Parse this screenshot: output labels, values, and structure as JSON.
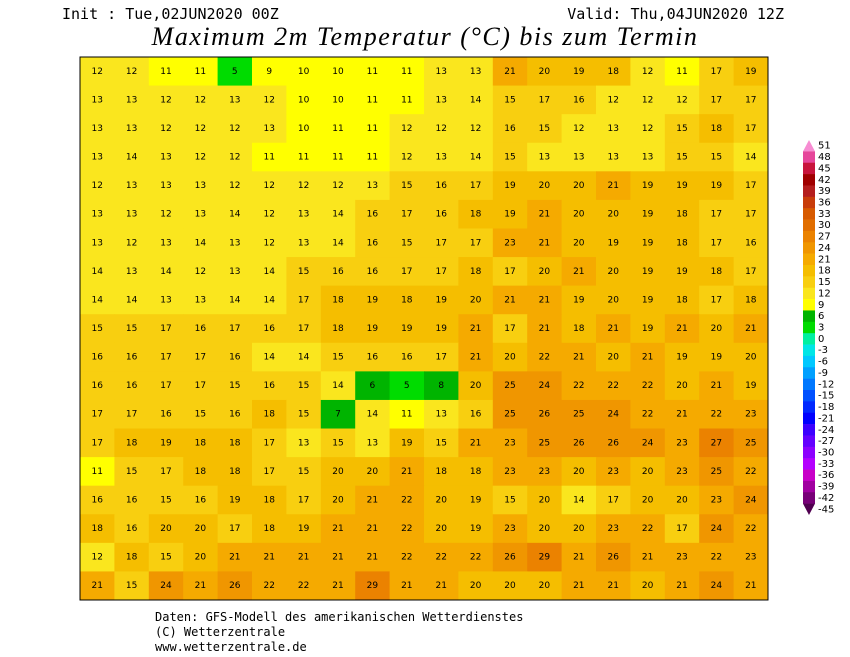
{
  "header": {
    "init": "Init : Tue,02JUN2020 00Z",
    "valid": "Valid: Thu,04JUN2020 12Z",
    "title": "Maximum 2m Temperatur (°C) bis zum Termin"
  },
  "map": {
    "rows": [
      [
        12,
        12,
        11,
        11,
        5,
        9,
        10,
        10,
        11,
        11,
        13,
        13,
        21,
        20,
        19,
        18,
        12,
        11,
        17,
        19
      ],
      [
        13,
        13,
        12,
        12,
        13,
        12,
        10,
        10,
        11,
        11,
        13,
        14,
        15,
        17,
        16,
        12,
        12,
        12,
        17,
        17
      ],
      [
        13,
        13,
        12,
        12,
        12,
        13,
        10,
        11,
        11,
        12,
        12,
        12,
        16,
        15,
        12,
        13,
        12,
        15,
        18,
        17
      ],
      [
        13,
        14,
        13,
        12,
        12,
        11,
        11,
        11,
        11,
        12,
        13,
        14,
        15,
        13,
        13,
        13,
        13,
        15,
        15,
        14
      ],
      [
        12,
        13,
        13,
        13,
        12,
        12,
        12,
        12,
        13,
        15,
        16,
        17,
        19,
        20,
        20,
        21,
        19,
        19,
        19,
        17
      ],
      [
        13,
        13,
        12,
        13,
        14,
        12,
        13,
        14,
        16,
        17,
        16,
        18,
        19,
        21,
        20,
        20,
        19,
        18,
        17,
        17
      ],
      [
        13,
        12,
        13,
        14,
        13,
        12,
        13,
        14,
        16,
        15,
        17,
        17,
        23,
        21,
        20,
        19,
        19,
        18,
        17,
        16
      ],
      [
        14,
        13,
        14,
        12,
        13,
        14,
        15,
        16,
        16,
        17,
        17,
        18,
        17,
        20,
        21,
        20,
        19,
        19,
        18,
        17
      ],
      [
        14,
        14,
        13,
        13,
        14,
        14,
        17,
        18,
        19,
        18,
        19,
        20,
        21,
        21,
        19,
        20,
        19,
        18,
        17,
        18
      ],
      [
        15,
        15,
        17,
        16,
        17,
        16,
        17,
        18,
        19,
        19,
        19,
        21,
        17,
        21,
        18,
        21,
        19,
        21,
        20,
        21
      ],
      [
        16,
        16,
        17,
        17,
        16,
        14,
        14,
        15,
        16,
        16,
        17,
        21,
        20,
        22,
        21,
        20,
        21,
        19,
        19,
        20
      ],
      [
        16,
        16,
        17,
        17,
        15,
        16,
        15,
        14,
        6,
        5,
        8,
        20,
        25,
        24,
        22,
        22,
        22,
        20,
        21,
        19
      ],
      [
        17,
        17,
        16,
        15,
        16,
        18,
        15,
        7,
        14,
        11,
        13,
        16,
        25,
        26,
        25,
        24,
        22,
        21,
        22,
        23
      ],
      [
        17,
        18,
        19,
        18,
        18,
        17,
        13,
        15,
        13,
        19,
        15,
        21,
        23,
        25,
        26,
        26,
        24,
        23,
        27,
        25
      ],
      [
        11,
        15,
        17,
        18,
        18,
        17,
        15,
        20,
        20,
        21,
        18,
        18,
        23,
        23,
        20,
        23,
        20,
        23,
        25,
        22
      ],
      [
        16,
        16,
        15,
        16,
        19,
        18,
        17,
        20,
        21,
        22,
        20,
        19,
        15,
        20,
        14,
        17,
        20,
        20,
        23,
        24
      ],
      [
        18,
        16,
        20,
        20,
        17,
        18,
        19,
        21,
        21,
        22,
        20,
        19,
        23,
        20,
        20,
        23,
        22,
        17,
        24,
        22
      ],
      [
        12,
        18,
        15,
        20,
        21,
        21,
        21,
        21,
        21,
        22,
        22,
        22,
        26,
        29,
        21,
        26,
        21,
        23,
        22,
        23
      ],
      [
        21,
        15,
        24,
        21,
        26,
        22,
        22,
        21,
        29,
        21,
        21,
        20,
        20,
        20,
        21,
        21,
        20,
        21,
        24,
        21
      ]
    ]
  },
  "colorbar": {
    "levels": [
      51,
      48,
      45,
      42,
      39,
      36,
      33,
      30,
      27,
      24,
      21,
      18,
      15,
      12,
      9,
      6,
      3,
      0,
      -3,
      -6,
      -9,
      -12,
      -15,
      -18,
      -21,
      -24,
      -27,
      -30,
      -33,
      -36,
      -39,
      -42,
      -45
    ],
    "colors": [
      "#f78cd2",
      "#e6469b",
      "#c8143c",
      "#a00000",
      "#b41e1e",
      "#c83c0a",
      "#d75a00",
      "#e16e00",
      "#eb8200",
      "#f09600",
      "#f5aa00",
      "#f5be00",
      "#f8cf10",
      "#fae61e",
      "#ffff00",
      "#00b400",
      "#00dc00",
      "#00f0a0",
      "#00e6e6",
      "#00c8ff",
      "#00a0ff",
      "#0078ff",
      "#0050ff",
      "#0028ff",
      "#0000ff",
      "#3c00ff",
      "#6400ff",
      "#8c00ff",
      "#b400ff",
      "#c800c8",
      "#a000a0",
      "#780078",
      "#500050"
    ]
  },
  "footer": {
    "lines": [
      "Daten: GFS-Modell des amerikanischen Wetterdienstes",
      "(C) Wetterzentrale",
      "www.wetterzentrale.de"
    ]
  }
}
